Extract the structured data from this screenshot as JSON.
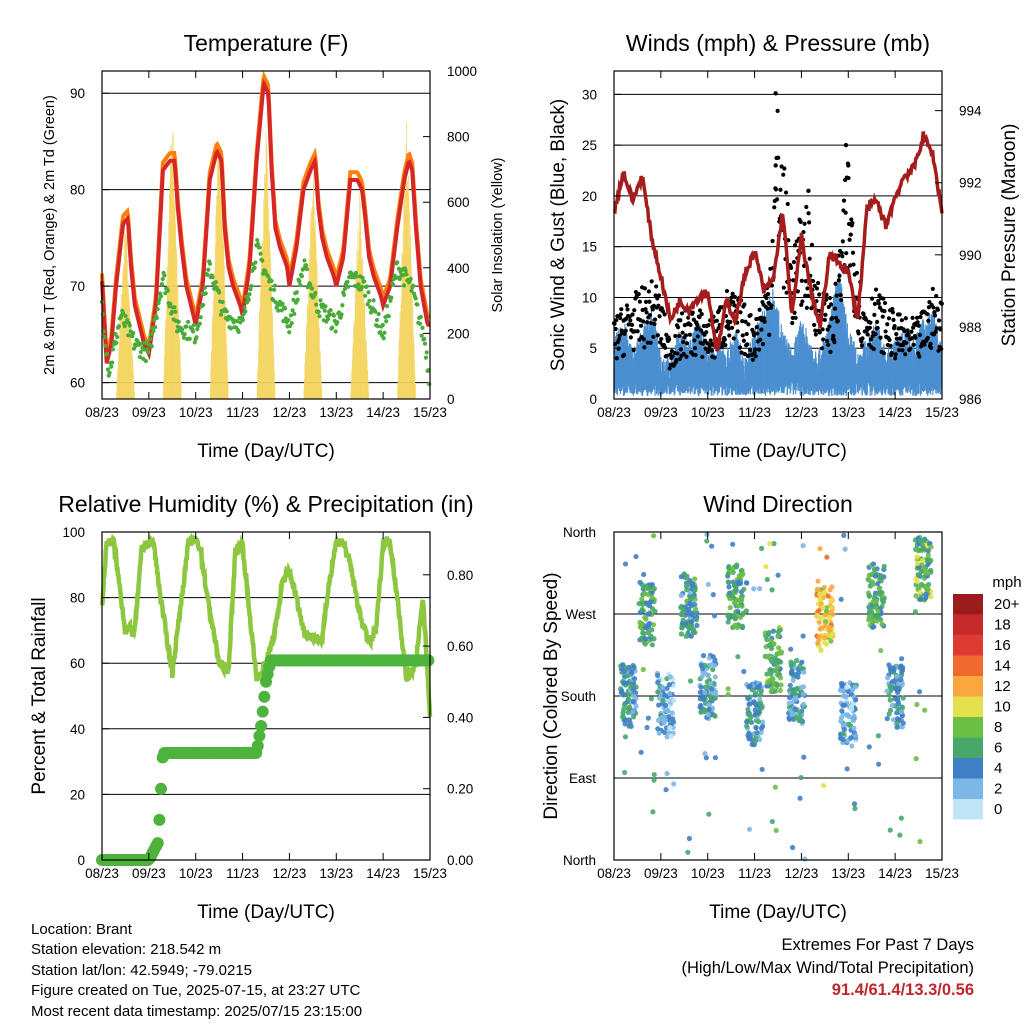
{
  "colors": {
    "temp_2m": "#d62728",
    "temp_9m": "#ff7f0e",
    "dewpoint": "#4aab3a",
    "insolation": "#f3d45a",
    "wind": "#4b8fd0",
    "gust": "#000000",
    "pressure": "#a51c1c",
    "rh": "#8dc63f",
    "precip": "#4db33d"
  },
  "time_ticks": [
    "08/23",
    "09/23",
    "10/23",
    "11/23",
    "12/23",
    "13/23",
    "14/23",
    "15/23"
  ],
  "chart_data": [
    {
      "id": "temperature",
      "type": "line",
      "title": "Temperature (F)",
      "xlabel": "Time (Day/UTC)",
      "ylabel": "2m & 9m T (Red, Orange) & 2m Td (Green)",
      "y2label": "Solar Insolation (Yellow)",
      "ylim": [
        58.3,
        92.3
      ],
      "y2lim": [
        0,
        1000
      ],
      "yticks": [
        60,
        70,
        80,
        90
      ],
      "y2ticks": [
        0,
        200,
        400,
        600,
        800,
        1000
      ],
      "grid": true,
      "x_days": 7,
      "series": [
        {
          "key": "temp_2m",
          "x": [
            0,
            0.1,
            0.2,
            0.3,
            0.45,
            0.55,
            0.62,
            0.7,
            0.8,
            0.9,
            1.0,
            1.15,
            1.3,
            1.45,
            1.55,
            1.62,
            1.7,
            1.8,
            1.95,
            2.0,
            2.15,
            2.3,
            2.45,
            2.55,
            2.62,
            2.7,
            2.8,
            2.95,
            3.0,
            3.15,
            3.3,
            3.45,
            3.55,
            3.62,
            3.7,
            3.8,
            3.95,
            4.0,
            4.15,
            4.3,
            4.45,
            4.55,
            4.62,
            4.7,
            4.8,
            4.95,
            5.0,
            5.15,
            5.3,
            5.45,
            5.55,
            5.62,
            5.7,
            5.8,
            5.95,
            6.0,
            6.15,
            6.3,
            6.45,
            6.55,
            6.62,
            6.7,
            6.8,
            6.95,
            7.0
          ],
          "values": [
            70.5,
            62,
            64,
            70,
            76.5,
            77,
            72,
            68,
            66,
            64,
            63,
            68,
            82,
            83,
            83,
            78,
            74,
            70,
            67,
            66,
            70,
            81,
            84,
            83,
            76,
            72,
            70,
            68,
            67,
            72,
            83,
            91,
            90,
            82,
            76,
            74,
            72,
            70,
            74,
            80,
            82,
            83,
            78,
            75,
            73,
            71,
            70,
            73,
            81,
            81,
            80,
            77,
            73,
            71,
            69,
            68,
            70,
            76,
            81,
            83,
            82,
            76,
            70,
            66,
            66
          ]
        },
        {
          "key": "dewpoint",
          "x": [
            0,
            0.15,
            0.4,
            0.7,
            1.0,
            1.3,
            1.6,
            2.0,
            2.3,
            2.6,
            3.0,
            3.3,
            3.6,
            4.0,
            4.3,
            4.6,
            5.0,
            5.3,
            5.6,
            6.0,
            6.3,
            6.6,
            6.9,
            7.0
          ],
          "values": [
            68,
            61,
            67,
            64,
            63,
            71,
            66,
            65,
            72,
            67,
            66,
            74,
            70,
            66,
            72,
            68,
            66,
            71,
            70,
            65,
            72,
            70,
            64,
            60
          ]
        },
        {
          "key": "insolation",
          "axis": "y2",
          "x": [
            0,
            0.3,
            0.5,
            0.7,
            1.0,
            1.3,
            1.5,
            1.7,
            2.0,
            2.3,
            2.5,
            2.7,
            3.0,
            3.3,
            3.5,
            3.7,
            4.0,
            4.3,
            4.5,
            4.7,
            5.0,
            5.3,
            5.5,
            5.7,
            6.0,
            6.3,
            6.5,
            6.7,
            7.0
          ],
          "values": [
            0,
            0,
            600,
            0,
            0,
            0,
            920,
            0,
            0,
            0,
            950,
            0,
            0,
            0,
            900,
            0,
            0,
            0,
            750,
            0,
            0,
            0,
            650,
            0,
            0,
            0,
            900,
            0,
            0
          ]
        }
      ]
    },
    {
      "id": "winds",
      "type": "line",
      "title": "Winds (mph) & Pressure (mb)",
      "xlabel": "Time (Day/UTC)",
      "ylabel": "Sonic Wind & Gust (Blue, Black)",
      "y2label": "Station Pressure (Maroon)",
      "ylim": [
        0,
        32.3
      ],
      "y2lim": [
        986,
        995.1
      ],
      "yticks": [
        0,
        5,
        10,
        15,
        20,
        25,
        30
      ],
      "y2ticks": [
        986,
        988,
        990,
        992,
        994
      ],
      "grid": true,
      "x_days": 7,
      "series": [
        {
          "key": "pressure",
          "axis": "y2",
          "x": [
            0,
            0.2,
            0.4,
            0.6,
            0.8,
            1.0,
            1.2,
            1.4,
            1.6,
            1.8,
            2.0,
            2.2,
            2.4,
            2.6,
            2.8,
            3.0,
            3.2,
            3.4,
            3.6,
            3.8,
            4.0,
            4.2,
            4.4,
            4.6,
            4.8,
            5.0,
            5.2,
            5.4,
            5.6,
            5.8,
            6.0,
            6.2,
            6.4,
            6.6,
            6.8,
            7.0
          ],
          "values": [
            991.2,
            992.3,
            991.5,
            992.2,
            990.5,
            989.4,
            988.2,
            988.7,
            988.5,
            988.8,
            989,
            987.3,
            988.7,
            988.2,
            989.5,
            990.1,
            989,
            989.3,
            991.2,
            988.3,
            990.5,
            989,
            988,
            990,
            989.8,
            989.5,
            988.2,
            991.3,
            991.5,
            990.8,
            991.6,
            992.2,
            992.4,
            993.3,
            992.8,
            991.2
          ]
        },
        {
          "key": "wind",
          "x": [
            0,
            0.2,
            0.4,
            0.6,
            0.8,
            1.0,
            1.2,
            1.4,
            1.6,
            1.8,
            2.0,
            2.2,
            2.4,
            2.6,
            2.8,
            3.0,
            3.2,
            3.4,
            3.6,
            3.8,
            4.0,
            4.2,
            4.4,
            4.6,
            4.8,
            5.0,
            5.2,
            5.4,
            5.6,
            5.8,
            6.0,
            6.2,
            6.4,
            6.6,
            6.8,
            7.0
          ],
          "values": [
            3,
            5,
            2,
            4,
            6,
            2,
            1,
            4,
            3,
            5,
            2,
            3,
            2,
            4,
            1,
            4,
            6,
            8,
            4,
            2,
            5,
            3,
            2,
            5,
            10,
            4,
            2,
            3,
            5,
            2,
            3,
            4,
            3,
            5,
            6,
            2
          ]
        },
        {
          "key": "gust",
          "x": [
            0,
            0.3,
            0.6,
            0.9,
            1.2,
            1.5,
            1.8,
            2.1,
            2.4,
            2.7,
            3.0,
            3.3,
            3.5,
            3.8,
            4.1,
            4.4,
            4.7,
            5.0,
            5.3,
            5.6,
            5.9,
            6.2,
            6.5,
            6.8,
            7.0
          ],
          "values": [
            8,
            10,
            11,
            12,
            6,
            9,
            9,
            8,
            11,
            10,
            8,
            13,
            30,
            15,
            20,
            11,
            10,
            25,
            10,
            11,
            9,
            8,
            8,
            11,
            10
          ]
        }
      ]
    },
    {
      "id": "humidity",
      "type": "line",
      "title": "Relative Humidity (%) & Precipitation (in)",
      "xlabel": "Time (Day/UTC)",
      "ylabel": "Percent & Total Rainfall",
      "ylim": [
        0,
        100
      ],
      "y2lim": [
        0,
        0.92
      ],
      "yticks": [
        0,
        20,
        40,
        60,
        80,
        100
      ],
      "y2ticks": [
        0.0,
        0.2,
        0.4,
        0.6,
        0.8
      ],
      "y2ticklabels": [
        "0.00",
        "0.20",
        "0.40",
        "0.60",
        "0.80"
      ],
      "grid": true,
      "x_days": 7,
      "series": [
        {
          "key": "rh",
          "x": [
            0,
            0.1,
            0.25,
            0.5,
            0.7,
            0.85,
            1.0,
            1.1,
            1.25,
            1.5,
            1.7,
            1.85,
            2.0,
            2.1,
            2.25,
            2.5,
            2.7,
            2.85,
            3.0,
            3.15,
            3.3,
            3.5,
            3.7,
            3.85,
            4.0,
            4.15,
            4.3,
            4.5,
            4.7,
            4.85,
            5.0,
            5.15,
            5.3,
            5.5,
            5.7,
            5.85,
            6.0,
            6.15,
            6.3,
            6.5,
            6.7,
            6.85,
            7.0
          ],
          "values": [
            77,
            97,
            97,
            70,
            70,
            95,
            97,
            97,
            80,
            57,
            80,
            97,
            98,
            95,
            80,
            60,
            58,
            95,
            96,
            75,
            55,
            60,
            70,
            85,
            88,
            80,
            70,
            68,
            67,
            85,
            97,
            97,
            90,
            75,
            66,
            70,
            97,
            97,
            80,
            55,
            60,
            80,
            45
          ]
        },
        {
          "key": "precip",
          "axis": "y2",
          "x": [
            0,
            0.8,
            1.0,
            1.2,
            1.3,
            3.3,
            3.4,
            3.5,
            3.6,
            7.0
          ],
          "values": [
            0,
            0,
            0,
            0.05,
            0.3,
            0.3,
            0.38,
            0.5,
            0.56,
            0.56
          ]
        }
      ]
    },
    {
      "id": "wind_direction",
      "type": "scatter",
      "title": "Wind Direction",
      "xlabel": "Time (Day/UTC)",
      "ylabel": "Direction (Colored By Speed)",
      "ylim": [
        0,
        360
      ],
      "yticklabels": [
        "North",
        "East",
        "South",
        "West",
        "North"
      ],
      "grid": true,
      "x_days": 7,
      "legend": {
        "title": "mph",
        "levels": [
          "20+",
          "18",
          "16",
          "14",
          "12",
          "10",
          "8",
          "6",
          "4",
          "2",
          "0"
        ],
        "colors": [
          "#9b1c1c",
          "#c62a2a",
          "#e03b33",
          "#f06a30",
          "#f8a83d",
          "#e6e04c",
          "#6cbf45",
          "#47a86a",
          "#3f7fc4",
          "#7db7e6",
          "#bfe4f7"
        ],
        "position": "right"
      },
      "clusters": [
        {
          "x": 0.3,
          "dir": 180,
          "speed": 4
        },
        {
          "x": 0.7,
          "dir": 270,
          "speed": 6
        },
        {
          "x": 1.1,
          "dir": 170,
          "speed": 3
        },
        {
          "x": 1.6,
          "dir": 280,
          "speed": 5
        },
        {
          "x": 2.0,
          "dir": 190,
          "speed": 4
        },
        {
          "x": 2.6,
          "dir": 290,
          "speed": 6
        },
        {
          "x": 3.0,
          "dir": 160,
          "speed": 4
        },
        {
          "x": 3.4,
          "dir": 220,
          "speed": 7
        },
        {
          "x": 3.9,
          "dir": 185,
          "speed": 4
        },
        {
          "x": 4.5,
          "dir": 265,
          "speed": 11
        },
        {
          "x": 5.0,
          "dir": 160,
          "speed": 3
        },
        {
          "x": 5.6,
          "dir": 290,
          "speed": 6
        },
        {
          "x": 6.0,
          "dir": 180,
          "speed": 4
        },
        {
          "x": 6.6,
          "dir": 320,
          "speed": 7
        }
      ]
    }
  ],
  "footer": {
    "location": "Location: Brant",
    "elevation": "Station elevation: 218.542 m",
    "latlon": "Station lat/lon: 42.5949; -79.0215",
    "created": "Figure created on Tue, 2025-07-15, at 23:27 UTC",
    "timestamp": "Most recent data timestamp: 2025/07/15 23:15:00",
    "extremes_title": "Extremes For Past 7 Days",
    "extremes_sub": "(High/Low/Max Wind/Total Precipitation)",
    "extremes_values": "91.4/61.4/13.3/0.56"
  }
}
